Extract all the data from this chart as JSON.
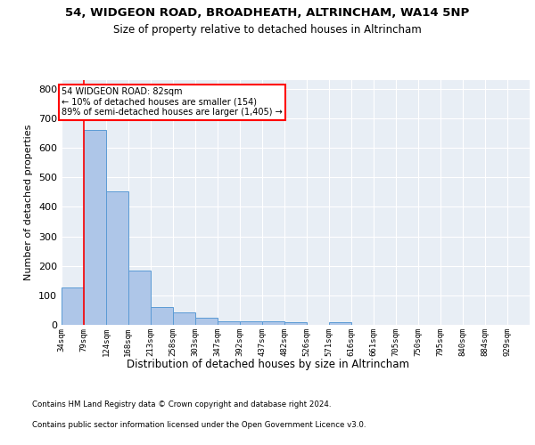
{
  "title": "54, WIDGEON ROAD, BROADHEATH, ALTRINCHAM, WA14 5NP",
  "subtitle": "Size of property relative to detached houses in Altrincham",
  "xlabel": "Distribution of detached houses by size in Altrincham",
  "ylabel": "Number of detached properties",
  "bin_labels": [
    "34sqm",
    "79sqm",
    "124sqm",
    "168sqm",
    "213sqm",
    "258sqm",
    "303sqm",
    "347sqm",
    "392sqm",
    "437sqm",
    "482sqm",
    "526sqm",
    "571sqm",
    "616sqm",
    "661sqm",
    "705sqm",
    "750sqm",
    "795sqm",
    "840sqm",
    "884sqm",
    "929sqm"
  ],
  "bin_edges": [
    34,
    79,
    124,
    168,
    213,
    258,
    303,
    347,
    392,
    437,
    482,
    526,
    571,
    616,
    661,
    705,
    750,
    795,
    840,
    884,
    929
  ],
  "bar_values": [
    128,
    660,
    453,
    183,
    60,
    43,
    25,
    12,
    13,
    11,
    8,
    0,
    8,
    0,
    0,
    0,
    0,
    0,
    0,
    0
  ],
  "bar_color": "#aec6e8",
  "bar_edge_color": "#5b9bd5",
  "red_line_x": 79,
  "annotation_box": {
    "text_lines": [
      "54 WIDGEON ROAD: 82sqm",
      "← 10% of detached houses are smaller (154)",
      "89% of semi-detached houses are larger (1,405) →"
    ]
  },
  "ylim": [
    0,
    830
  ],
  "yticks": [
    0,
    100,
    200,
    300,
    400,
    500,
    600,
    700,
    800
  ],
  "background_color": "#e8eef5",
  "grid_color": "#ffffff",
  "footer_line1": "Contains HM Land Registry data © Crown copyright and database right 2024.",
  "footer_line2": "Contains public sector information licensed under the Open Government Licence v3.0."
}
